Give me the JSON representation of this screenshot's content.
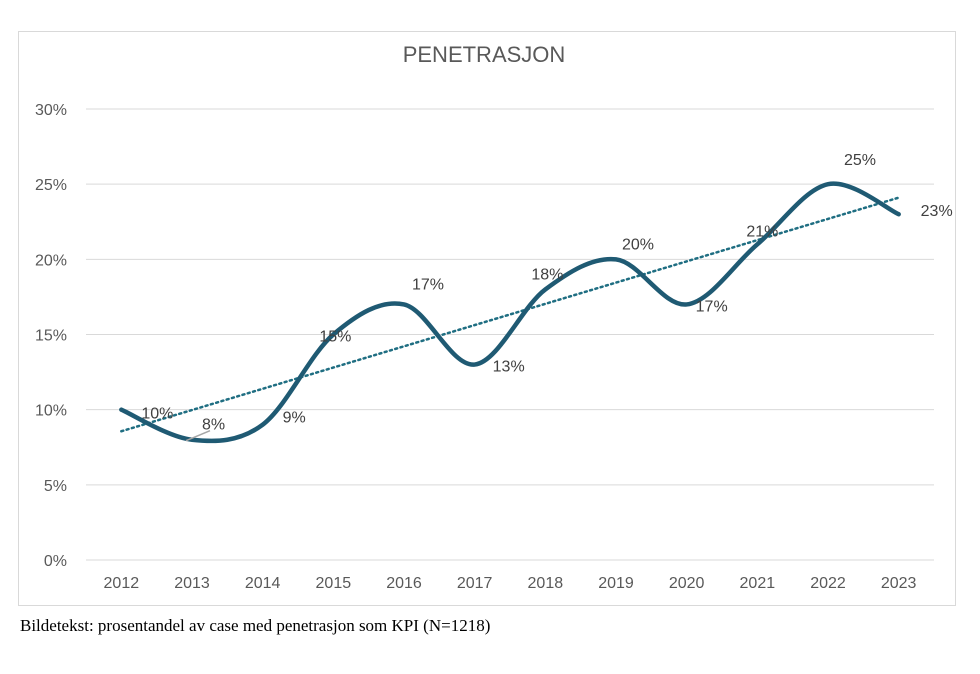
{
  "chart_data": {
    "type": "line",
    "title": "PENETRASJON",
    "xlabel": "",
    "ylabel": "",
    "categories": [
      "2012",
      "2013",
      "2014",
      "2015",
      "2016",
      "2017",
      "2018",
      "2019",
      "2020",
      "2021",
      "2022",
      "2023"
    ],
    "series": [
      {
        "values": [
          10,
          8,
          9,
          15,
          17,
          13,
          18,
          20,
          17,
          21,
          25,
          23
        ],
        "data_labels": [
          "10%",
          "8%",
          "9%",
          "15%",
          "17%",
          "13%",
          "18%",
          "20%",
          "17%",
          "21%",
          "25%",
          "23%"
        ],
        "color": "#1f5a73",
        "smooth": true
      }
    ],
    "trendline": {
      "type": "linear",
      "style": "dotted",
      "color": "#1f6e82"
    },
    "ylim": [
      0,
      30
    ],
    "yticks": [
      "0%",
      "5%",
      "10%",
      "15%",
      "20%",
      "25%",
      "30%"
    ],
    "grid": true,
    "legend": "none"
  },
  "caption": "Bildetekst: prosentandel av case med penetrasjon som KPI (N=1218)"
}
